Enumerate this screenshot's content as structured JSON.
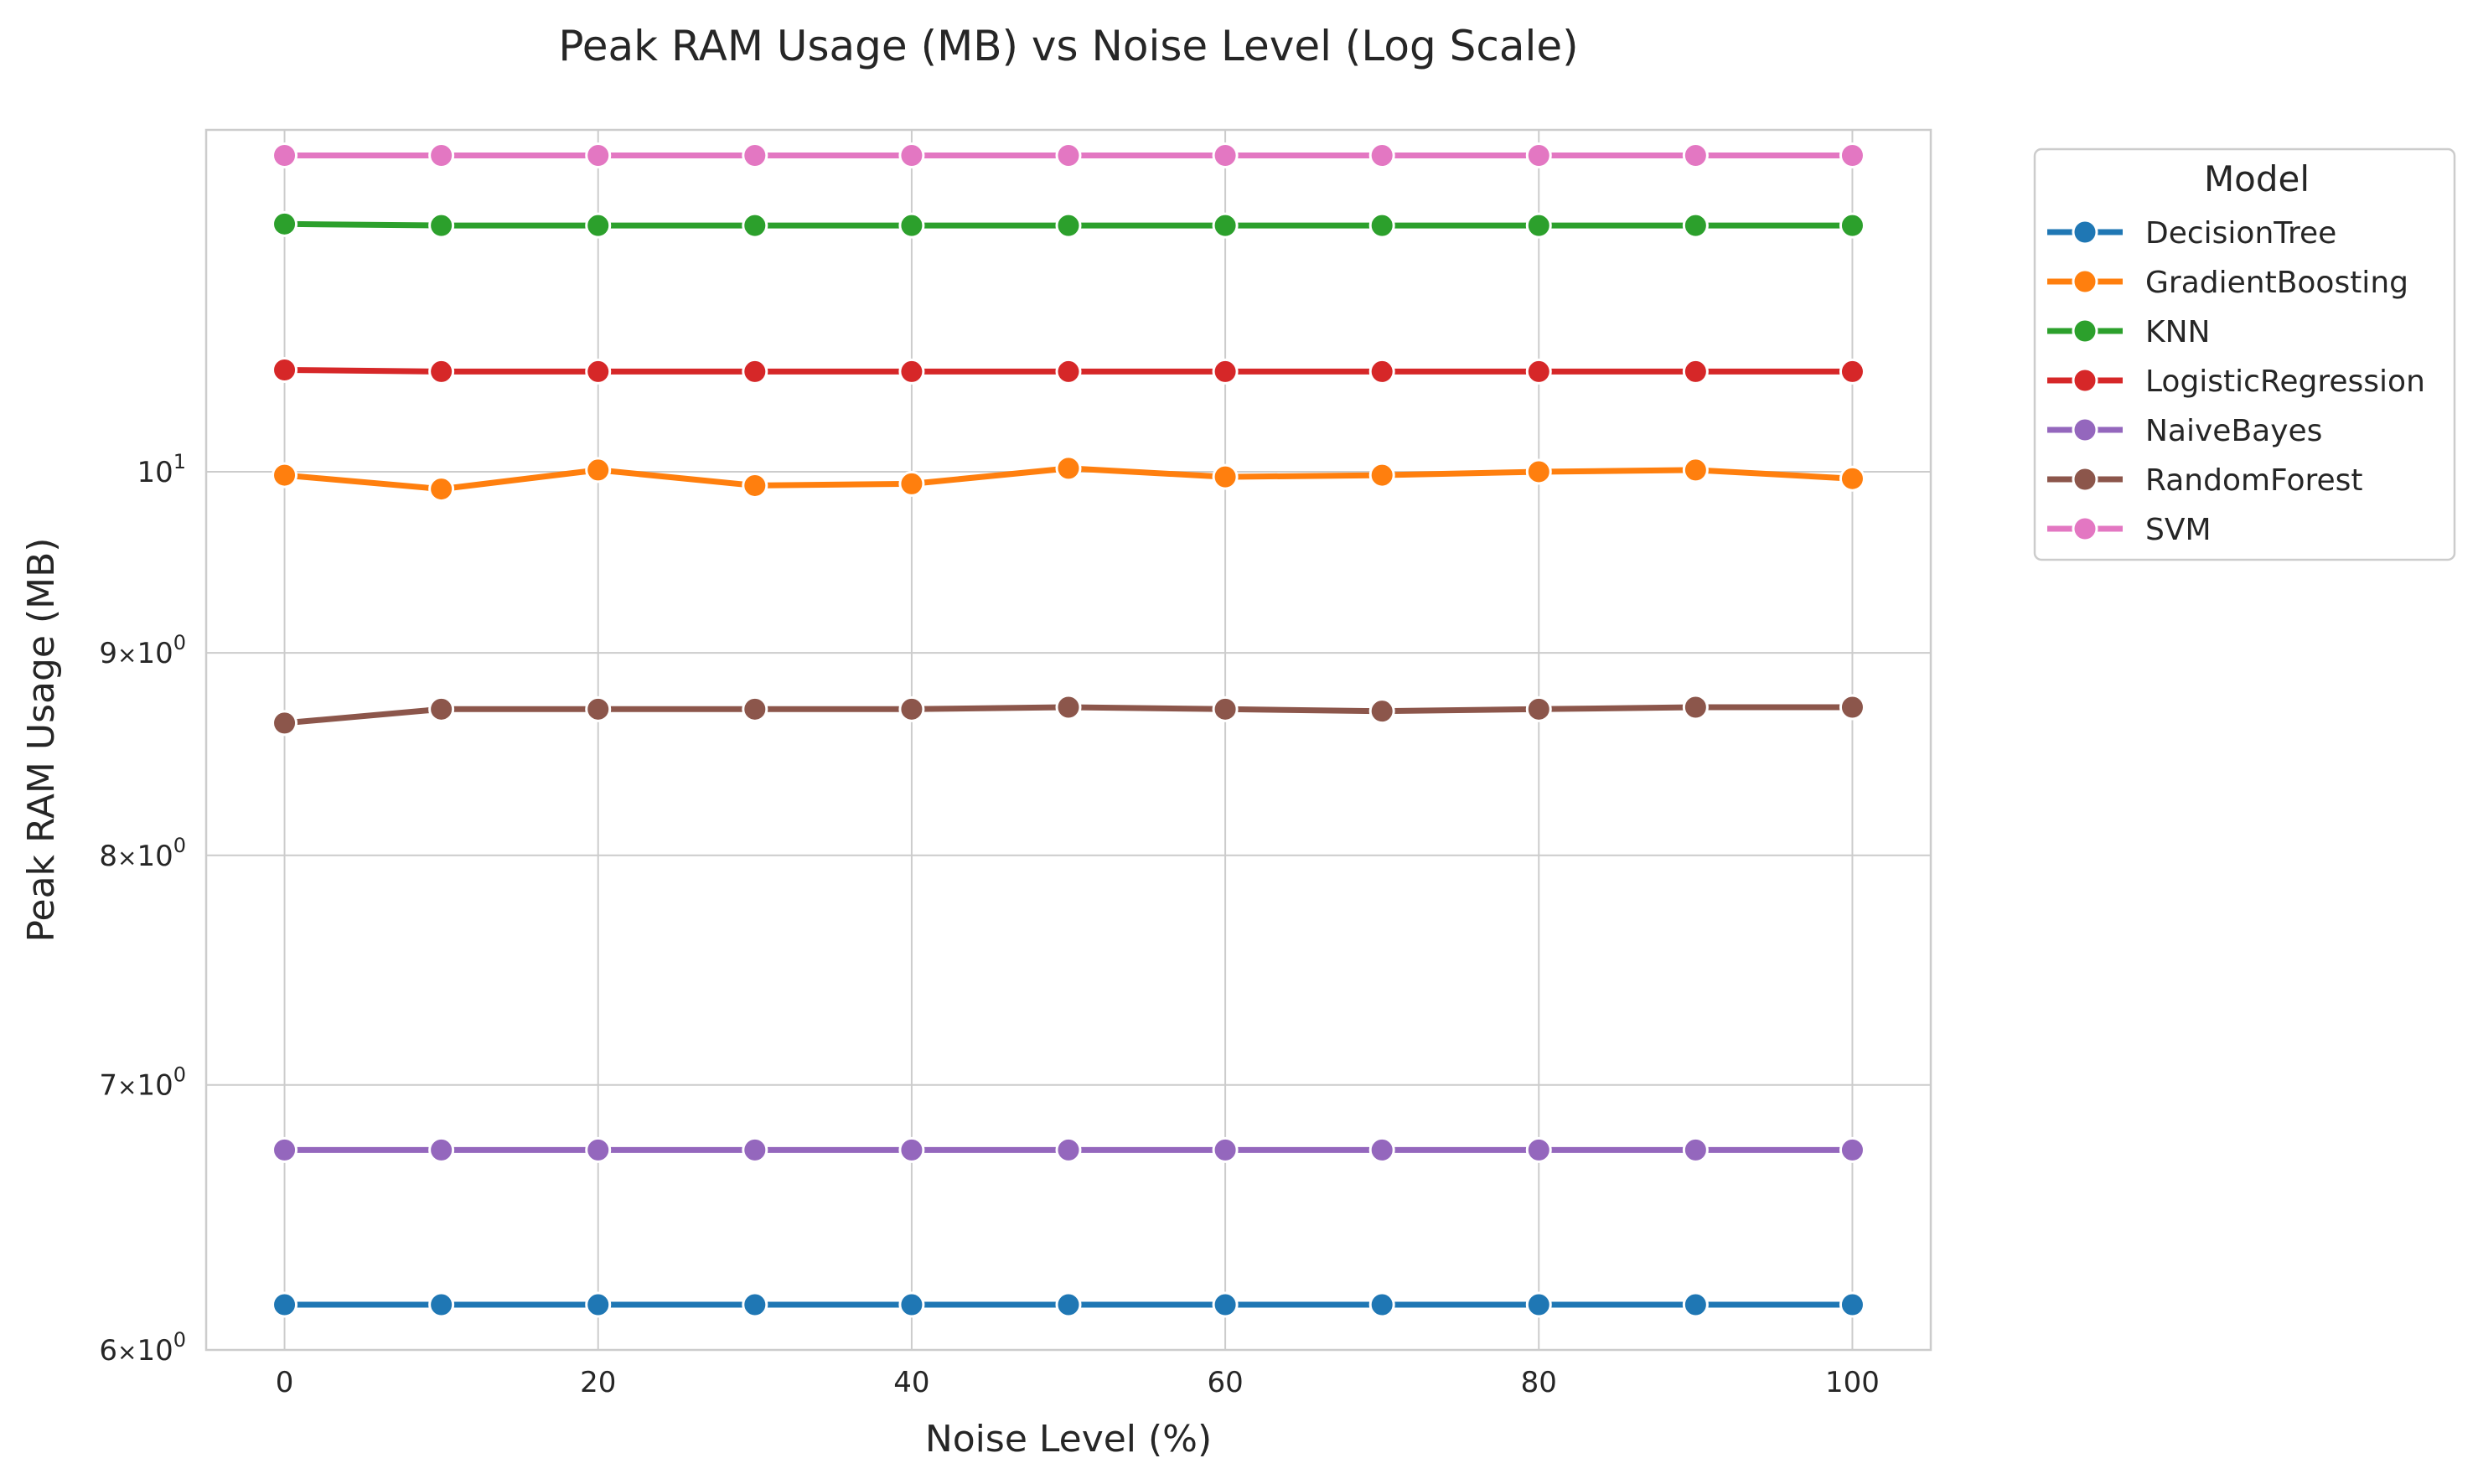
{
  "chart_data": {
    "type": "line",
    "title": "Peak RAM Usage (MB) vs Noise Level (Log Scale)",
    "xlabel": "Noise Level (%)",
    "ylabel": "Peak RAM Usage (MB)",
    "x": [
      0,
      10,
      20,
      30,
      40,
      50,
      60,
      70,
      80,
      90,
      100
    ],
    "xlim": [
      -5,
      105
    ],
    "x_ticks": [
      0,
      20,
      40,
      60,
      80,
      100
    ],
    "x_tick_labels": [
      "0",
      "20",
      "40",
      "60",
      "80",
      "100"
    ],
    "yscale": "log",
    "ylim": [
      6.0,
      12.2
    ],
    "y_ticks": [
      {
        "value": 6,
        "base": "6",
        "mult": "×",
        "ten": "10",
        "exp": "0"
      },
      {
        "value": 7,
        "base": "7",
        "mult": "×",
        "ten": "10",
        "exp": "0"
      },
      {
        "value": 8,
        "base": "8",
        "mult": "×",
        "ten": "10",
        "exp": "0"
      },
      {
        "value": 9,
        "base": "9",
        "mult": "×",
        "ten": "10",
        "exp": "0"
      },
      {
        "value": 10,
        "base": "",
        "mult": "",
        "ten": "10",
        "exp": "1"
      }
    ],
    "grid": true,
    "legend": {
      "title": "Model",
      "position": "outside-right-top"
    },
    "series": [
      {
        "name": "DecisionTree",
        "color": "#1f77b4",
        "values": [
          6.16,
          6.16,
          6.16,
          6.16,
          6.16,
          6.16,
          6.16,
          6.16,
          6.16,
          6.16,
          6.16
        ]
      },
      {
        "name": "GradientBoosting",
        "color": "#ff7f0e",
        "values": [
          9.98,
          9.9,
          10.01,
          9.92,
          9.93,
          10.02,
          9.97,
          9.98,
          10.0,
          10.01,
          9.96
        ]
      },
      {
        "name": "KNN",
        "color": "#2ca02c",
        "values": [
          11.55,
          11.54,
          11.54,
          11.54,
          11.54,
          11.54,
          11.54,
          11.54,
          11.54,
          11.54,
          11.54
        ]
      },
      {
        "name": "LogisticRegression",
        "color": "#d62728",
        "values": [
          10.61,
          10.6,
          10.6,
          10.6,
          10.6,
          10.6,
          10.6,
          10.6,
          10.6,
          10.6,
          10.6
        ]
      },
      {
        "name": "NaiveBayes",
        "color": "#9467bd",
        "values": [
          6.74,
          6.74,
          6.74,
          6.74,
          6.74,
          6.74,
          6.74,
          6.74,
          6.74,
          6.74,
          6.74
        ]
      },
      {
        "name": "RandomForest",
        "color": "#8c564b",
        "values": [
          8.64,
          8.71,
          8.71,
          8.71,
          8.71,
          8.72,
          8.71,
          8.7,
          8.71,
          8.72,
          8.72
        ]
      },
      {
        "name": "SVM",
        "color": "#e377c2",
        "values": [
          12.02,
          12.02,
          12.02,
          12.02,
          12.02,
          12.02,
          12.02,
          12.02,
          12.02,
          12.02,
          12.02
        ]
      }
    ]
  }
}
